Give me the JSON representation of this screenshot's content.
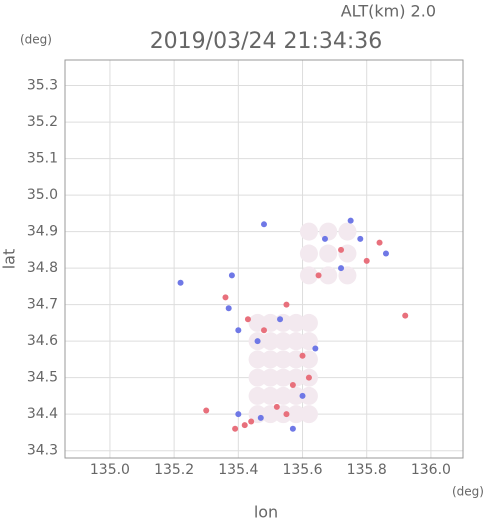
{
  "chart_data": {
    "type": "scatter",
    "title": "2019/03/24 21:34:36",
    "annotation": "ALT(km)  2.0",
    "y_unit": "(deg)",
    "x_unit": "(deg)",
    "xlabel": "lon",
    "ylabel": "lat",
    "xlim": [
      134.86,
      136.1
    ],
    "ylim": [
      34.28,
      35.37
    ],
    "xticks": [
      {
        "value": 135,
        "label": "135.0"
      },
      135.2,
      135.4,
      135.6,
      135.8,
      {
        "value": 136,
        "label": "136.0"
      }
    ],
    "yticks": [
      34.3,
      34.4,
      34.5,
      34.6,
      34.7,
      34.8,
      34.9,
      {
        "value": 35,
        "label": "35.0"
      },
      35.1,
      35.2,
      35.3
    ],
    "grid": true,
    "series": [
      {
        "color": "#f3e9ef",
        "x": [
          135.46,
          135.5,
          135.54,
          135.58,
          135.62,
          135.46,
          135.5,
          135.54,
          135.58,
          135.62,
          135.46,
          135.5,
          135.54,
          135.58,
          135.62,
          135.46,
          135.5,
          135.54,
          135.58,
          135.62,
          135.46,
          135.5,
          135.54,
          135.58,
          135.62,
          135.46,
          135.5,
          135.54,
          135.58,
          135.62,
          135.62,
          135.68,
          135.74,
          135.62,
          135.68,
          135.74,
          135.62,
          135.68,
          135.74
        ],
        "y": [
          34.4,
          34.4,
          34.4,
          34.4,
          34.4,
          34.45,
          34.45,
          34.45,
          34.45,
          34.45,
          34.5,
          34.5,
          34.5,
          34.5,
          34.5,
          34.55,
          34.55,
          34.55,
          34.55,
          34.55,
          34.6,
          34.6,
          34.6,
          34.6,
          34.6,
          34.65,
          34.65,
          34.65,
          34.65,
          34.65,
          34.78,
          34.78,
          34.78,
          34.84,
          34.84,
          34.84,
          34.9,
          34.9,
          34.9
        ]
      },
      {
        "color": "#e8707c",
        "x": [
          135.3,
          135.39,
          135.42,
          135.44,
          135.92,
          135.55,
          135.43,
          135.6,
          135.57,
          135.52,
          135.48,
          135.72,
          135.8,
          135.84,
          135.65,
          135.36,
          135.55,
          135.62
        ],
        "y": [
          34.41,
          34.36,
          34.37,
          34.38,
          34.67,
          34.7,
          34.66,
          34.56,
          34.48,
          34.42,
          34.63,
          34.85,
          34.82,
          34.87,
          34.78,
          34.72,
          34.4,
          34.5
        ]
      },
      {
        "color": "#6f78e6",
        "x": [
          135.4,
          135.47,
          135.46,
          135.4,
          135.37,
          135.67,
          135.72,
          135.78,
          135.6,
          135.53,
          135.38,
          135.48,
          135.22,
          135.57,
          135.64,
          135.75,
          135.86
        ],
        "y": [
          34.4,
          34.39,
          34.6,
          34.63,
          34.69,
          34.88,
          34.8,
          34.88,
          34.45,
          34.66,
          34.78,
          34.92,
          34.76,
          34.36,
          34.58,
          34.93,
          34.84
        ]
      }
    ]
  }
}
